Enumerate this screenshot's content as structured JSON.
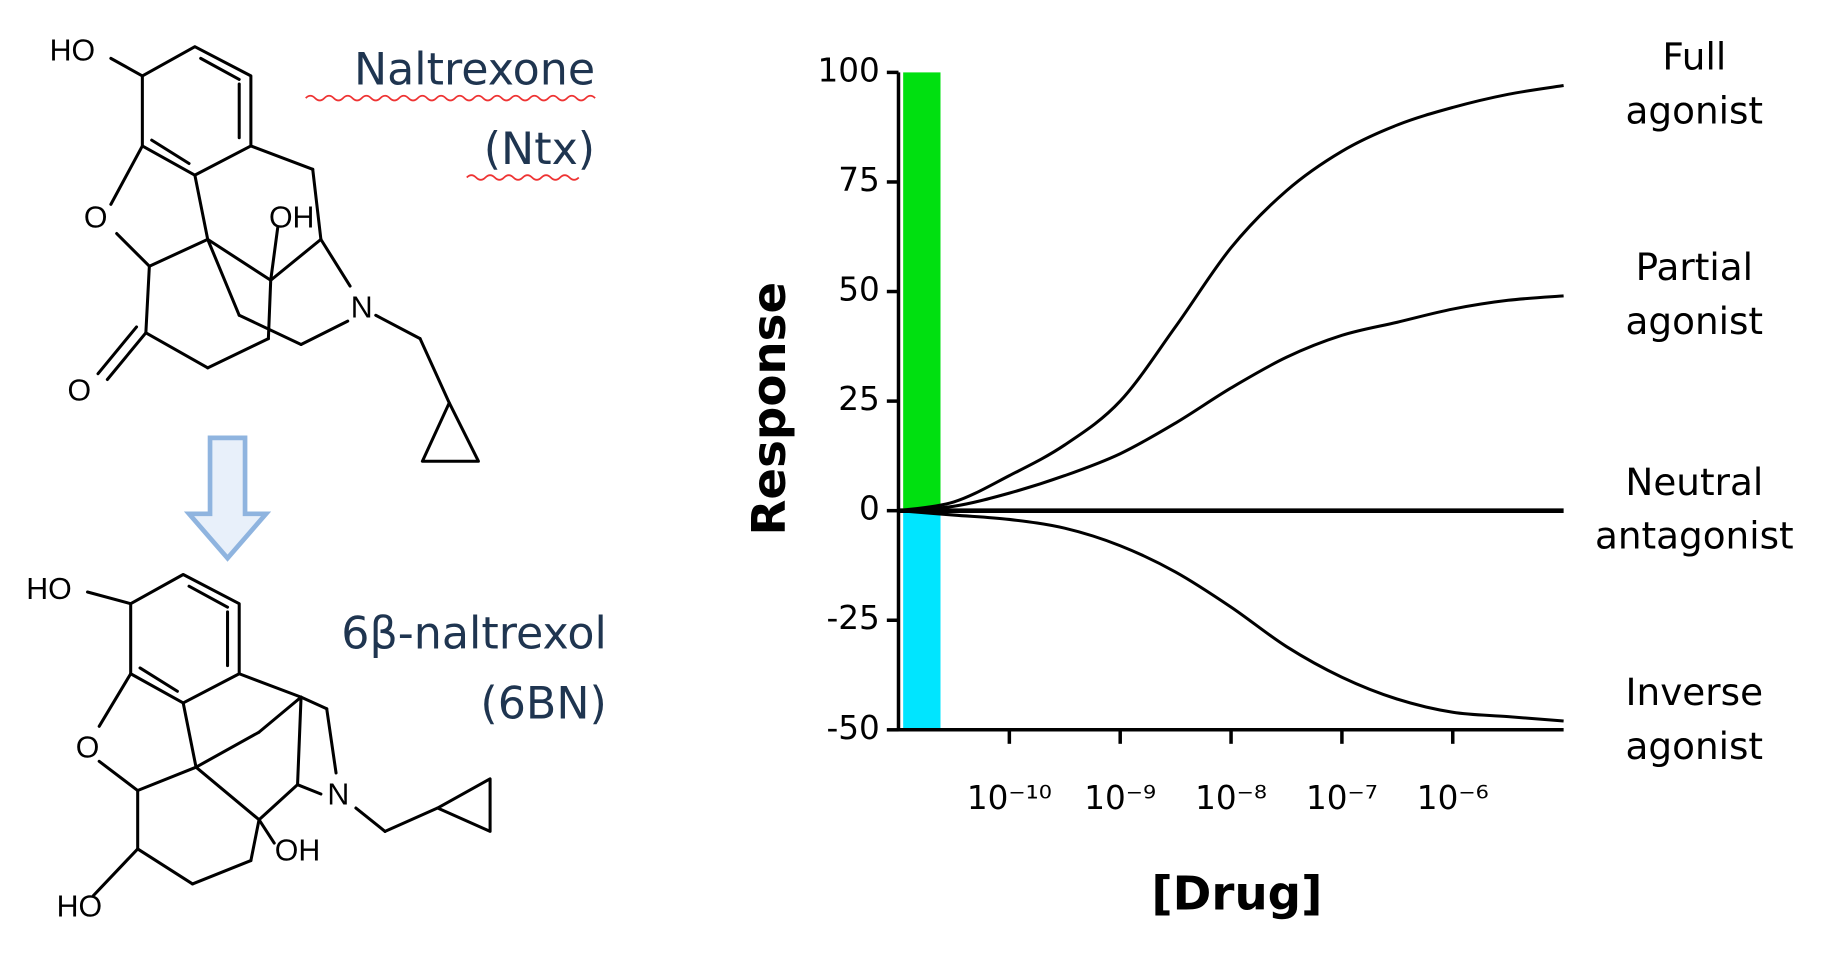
{
  "structures": [
    {
      "name": "Naltrexone",
      "abbrev": "(Ntx)",
      "atoms": [
        "HO",
        "O",
        "OH",
        "N",
        "O"
      ]
    },
    {
      "name": "6β-naltrexol",
      "abbrev": "(6BN)",
      "atoms": [
        "HO",
        "O",
        "N",
        "OH",
        "HO"
      ]
    }
  ],
  "chart_data": {
    "type": "line",
    "x_label": "[Drug]",
    "y_label": "Response",
    "x": [
      1e-11,
      3.16e-11,
      1e-10,
      3.16e-10,
      1e-09,
      3.16e-09,
      1e-08,
      3.16e-08,
      1e-07,
      3.16e-07,
      1e-06,
      3.16e-06,
      1e-05
    ],
    "series": [
      {
        "name": "Full agonist",
        "color": "#000000",
        "values": [
          0,
          2,
          8,
          15,
          25,
          42,
          60,
          73,
          82,
          88,
          92,
          95,
          97
        ]
      },
      {
        "name": "Partial agonist",
        "color": "#000000",
        "values": [
          0,
          1,
          4,
          8,
          13,
          20,
          28,
          35,
          40,
          43,
          46,
          48,
          49
        ]
      },
      {
        "name": "Neutral antagonist",
        "color": "#000000",
        "values": [
          0,
          0,
          0,
          0,
          0,
          0,
          0,
          0,
          0,
          0,
          0,
          0,
          0
        ]
      },
      {
        "name": "Inverse agonist",
        "color": "#000000",
        "values": [
          0,
          -1,
          -2,
          -4,
          -8,
          -14,
          -22,
          -31,
          -38,
          -43,
          -46,
          -47,
          -48
        ]
      }
    ],
    "bars": [
      {
        "color": "#00e010",
        "from": 0,
        "to": 100
      },
      {
        "color": "#00e5ff",
        "from": 0,
        "to": -50
      }
    ],
    "xscale": "log",
    "xlim": [
      1e-11,
      1e-05
    ],
    "xticks": [
      {
        "value": 1e-10,
        "label": "10⁻¹⁰"
      },
      {
        "value": 1e-09,
        "label": "10⁻⁹"
      },
      {
        "value": 1e-08,
        "label": "10⁻⁸"
      },
      {
        "value": 1e-07,
        "label": "10⁻⁷"
      },
      {
        "value": 1e-06,
        "label": "10⁻⁶"
      }
    ],
    "ylim": [
      -50,
      100
    ],
    "yticks": [
      -50,
      -25,
      0,
      25,
      50,
      75,
      100
    ]
  }
}
